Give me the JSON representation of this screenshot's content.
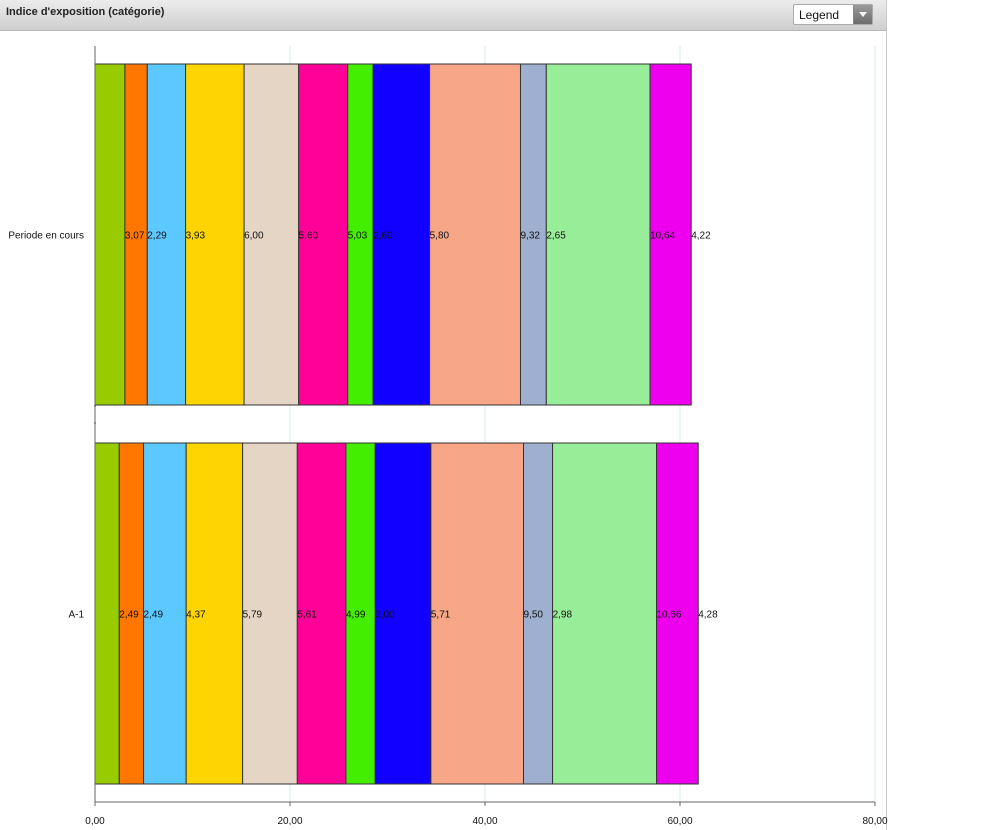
{
  "header": {
    "title": "Indice d'exposition (catégorie)",
    "legend_label": "Legend"
  },
  "chart_data": {
    "type": "bar",
    "orientation": "horizontal",
    "stacked": true,
    "categories": [
      "Periode en cours",
      "A-1"
    ],
    "xlim": [
      0,
      80
    ],
    "x_ticks": [
      "0,00",
      "20,00",
      "40,00",
      "60,00",
      "80,00"
    ],
    "grid": true,
    "series": [
      {
        "color": "#99CC00",
        "values": [
          3.07,
          2.49
        ],
        "labels": [
          "",
          ""
        ]
      },
      {
        "color": "#FF7700",
        "values": [
          2.29,
          2.49
        ],
        "labels": [
          "3,07",
          "2,49"
        ]
      },
      {
        "color": "#5BC8FF",
        "values": [
          3.93,
          4.37
        ],
        "labels": [
          "2,29",
          "2,49"
        ]
      },
      {
        "color": "#FFD500",
        "values": [
          6.0,
          5.79
        ],
        "labels": [
          "3,93",
          "4,37"
        ]
      },
      {
        "color": "#E5D5C5",
        "values": [
          5.6,
          5.61
        ],
        "labels": [
          "6,00",
          "5,79"
        ]
      },
      {
        "color": "#FF0099",
        "values": [
          5.03,
          4.99
        ],
        "labels": [
          "5,60",
          "5,61"
        ]
      },
      {
        "color": "#44EE00",
        "values": [
          2.6,
          3.0
        ],
        "labels": [
          "5,03",
          "4,99"
        ]
      },
      {
        "color": "#1100FF",
        "values": [
          5.8,
          5.71
        ],
        "labels": [
          "2,60",
          "3,00"
        ]
      },
      {
        "color": "#F7A788",
        "values": [
          9.32,
          9.5
        ],
        "labels": [
          "5,80",
          "5,71"
        ]
      },
      {
        "color": "#9EAFCF",
        "values": [
          2.65,
          2.98
        ],
        "labels": [
          "9,32",
          "9,50"
        ]
      },
      {
        "color": "#98EE98",
        "values": [
          10.64,
          10.66
        ],
        "labels": [
          "2,65",
          "2,98"
        ]
      },
      {
        "color": "#EE00EE",
        "values": [
          4.22,
          4.28
        ],
        "labels": [
          "10,64",
          "10,66"
        ]
      },
      {
        "color": "#EE00EE",
        "values": [
          0,
          0
        ],
        "labels": [
          "4,22",
          "4,28"
        ]
      }
    ]
  }
}
